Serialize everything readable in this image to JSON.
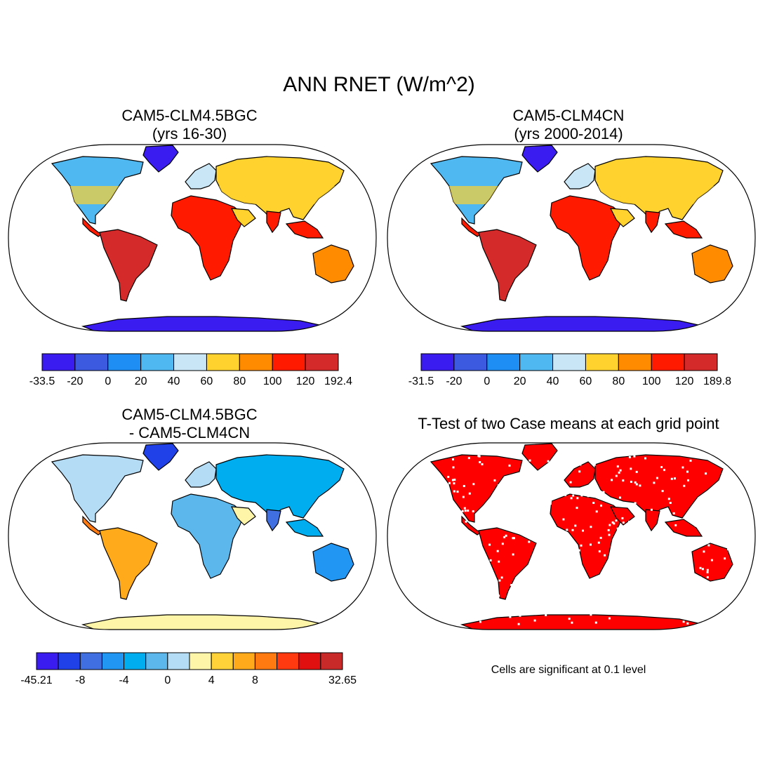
{
  "figure": {
    "title": "ANN RNET (W/m^2)",
    "note": "Cells are significant at 0.1 level"
  },
  "colors": {
    "land_outline": "#000000",
    "ocean": "#ffffff",
    "significant": "#ff0000"
  },
  "panels": [
    {
      "id": "case1",
      "title_lines": [
        "CAM5-CLM4.5BGC",
        "(yrs 16-30)"
      ],
      "type": "field"
    },
    {
      "id": "case2",
      "title_lines": [
        "CAM5-CLM4CN",
        "(yrs 2000-2014)"
      ],
      "type": "field"
    },
    {
      "id": "diff",
      "title_lines": [
        "CAM5-CLM4.5BGC",
        "- CAM5-CLM4CN"
      ],
      "type": "difference"
    },
    {
      "id": "ttest",
      "title_lines": [
        "T-Test of two Case means at each grid point"
      ],
      "type": "significance"
    }
  ],
  "colorbars": [
    {
      "id": "cb1",
      "colors": [
        "#3b1cf0",
        "#3b5ae0",
        "#1e8ef5",
        "#4fb8f0",
        "#c8e6f5",
        "#ffd22e",
        "#ff8c00",
        "#ff1a00",
        "#d42a2a"
      ],
      "labels": [
        "-33.5",
        "-20",
        "0",
        "20",
        "40",
        "60",
        "80",
        "100",
        "120",
        "192.4"
      ]
    },
    {
      "id": "cb2",
      "colors": [
        "#3b1cf0",
        "#3b5ae0",
        "#1e8ef5",
        "#4fb8f0",
        "#c8e6f5",
        "#ffd22e",
        "#ff8c00",
        "#ff1a00",
        "#d42a2a"
      ],
      "labels": [
        "-31.5",
        "-20",
        "0",
        "20",
        "40",
        "60",
        "80",
        "100",
        "120",
        "189.8"
      ]
    },
    {
      "id": "cb3",
      "colors": [
        "#3b1cf0",
        "#2040e8",
        "#3f6fe0",
        "#2196f3",
        "#00aef0",
        "#5cb8ec",
        "#b5dcf5",
        "#fff5a8",
        "#ffd23a",
        "#ffaa1a",
        "#ff7a10",
        "#ff3a10",
        "#e01010",
        "#c82a2a"
      ],
      "labels": [
        "-45.21",
        "",
        "-8",
        "",
        "-4",
        "",
        "0",
        "",
        "4",
        "",
        "8",
        "",
        "",
        "",
        "32.65"
      ]
    }
  ]
}
